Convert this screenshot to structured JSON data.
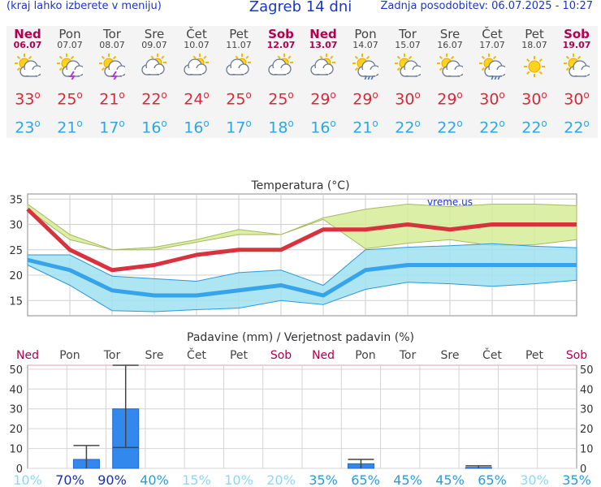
{
  "header": {
    "note": "(kraj lahko izberete v meniju)",
    "title": "Zagreb 14 dni",
    "updated": "Zadnja posodobitev: 06.07.2025 - 10:27"
  },
  "days": [
    {
      "name": "Ned",
      "date": "06.07",
      "icon": "sun-cloud-icon",
      "tmax": "33",
      "tmin": "23",
      "weekend": true
    },
    {
      "name": "Pon",
      "date": "07.07",
      "icon": "thunderstorm-icon",
      "tmax": "25",
      "tmin": "21",
      "weekend": false
    },
    {
      "name": "Tor",
      "date": "08.07",
      "icon": "sun-thunderstorm-icon",
      "tmax": "21",
      "tmin": "17",
      "weekend": false
    },
    {
      "name": "Sre",
      "date": "09.07",
      "icon": "cloudy-sun-icon",
      "tmax": "22",
      "tmin": "16",
      "weekend": false
    },
    {
      "name": "Čet",
      "date": "10.07",
      "icon": "cloudy-sun-icon",
      "tmax": "24",
      "tmin": "16",
      "weekend": false
    },
    {
      "name": "Pet",
      "date": "11.07",
      "icon": "cloudy-sun-icon",
      "tmax": "25",
      "tmin": "17",
      "weekend": false
    },
    {
      "name": "Sob",
      "date": "12.07",
      "icon": "cloudy-sun-icon",
      "tmax": "25",
      "tmin": "18",
      "weekend": true
    },
    {
      "name": "Ned",
      "date": "13.07",
      "icon": "cloudy-sun-icon",
      "tmax": "29",
      "tmin": "16",
      "weekend": true
    },
    {
      "name": "Pon",
      "date": "14.07",
      "icon": "sun-rain-icon",
      "tmax": "29",
      "tmin": "21",
      "weekend": false
    },
    {
      "name": "Tor",
      "date": "15.07",
      "icon": "sun-cloud-icon",
      "tmax": "30",
      "tmin": "22",
      "weekend": false
    },
    {
      "name": "Sre",
      "date": "16.07",
      "icon": "sun-cloud-icon",
      "tmax": "29",
      "tmin": "22",
      "weekend": false
    },
    {
      "name": "Čet",
      "date": "17.07",
      "icon": "sun-rain-icon",
      "tmax": "30",
      "tmin": "22",
      "weekend": false
    },
    {
      "name": "Pet",
      "date": "18.07",
      "icon": "sun-icon",
      "tmax": "30",
      "tmin": "22",
      "weekend": false
    },
    {
      "name": "Sob",
      "date": "19.07",
      "icon": "sun-cloud-icon",
      "tmax": "30",
      "tmin": "22",
      "weekend": true
    }
  ],
  "colors": {
    "max_line": "#d8323e",
    "max_band": "#d6ec96",
    "min_line": "#36a4ea",
    "min_band": "#9fe0f0",
    "precip_bar": "#3388ee",
    "weekend": "#b00050"
  },
  "chart_data": [
    {
      "type": "line",
      "title": "Temperatura (°C)",
      "watermark": "vreme.us",
      "x": [
        1,
        2,
        3,
        4,
        5,
        6,
        7,
        8,
        9,
        10,
        11,
        12,
        13,
        14
      ],
      "ylim": [
        12,
        36
      ],
      "yticks": [
        15,
        20,
        25,
        30,
        35
      ],
      "series": [
        {
          "values": [
            33,
            25,
            21,
            22,
            24,
            25,
            25,
            29,
            29,
            30,
            29,
            30,
            30,
            30
          ],
          "band_low": [
            33,
            27,
            25,
            25,
            26.5,
            28,
            28,
            31,
            25.2,
            26.3,
            27,
            25.8,
            26,
            27
          ],
          "band_high": [
            34,
            28,
            25,
            25.5,
            27,
            29,
            28,
            31.3,
            33,
            34,
            33.5,
            34,
            34,
            33.7
          ]
        },
        {
          "values": [
            23,
            21,
            17,
            16,
            16,
            17,
            18,
            16,
            21,
            22,
            22,
            22,
            22,
            22
          ],
          "band_low": [
            22,
            18,
            13,
            12.8,
            13.2,
            13.5,
            15,
            14.2,
            17.2,
            18.6,
            18.3,
            17.8,
            18.3,
            19
          ],
          "band_high": [
            24,
            24,
            19.8,
            19.3,
            18.8,
            20.5,
            21,
            18,
            25,
            25.5,
            25.8,
            26.2,
            25.7,
            25.4
          ]
        }
      ]
    },
    {
      "type": "bar",
      "title": "Padavine (mm) / Verjetnost padavin (%)",
      "categories": [
        "Ned",
        "Pon",
        "Tor",
        "Sre",
        "Čet",
        "Pet",
        "Sob",
        "Ned",
        "Pon",
        "Tor",
        "Sre",
        "Čet",
        "Pet",
        "Sob"
      ],
      "values": [
        0,
        4.5,
        30,
        0,
        0,
        0,
        0,
        0,
        2.3,
        0,
        0,
        0.5,
        0,
        0
      ],
      "error_low": [
        0,
        0,
        10.5,
        0,
        0,
        0,
        0,
        0,
        0,
        0,
        0,
        0,
        0,
        0
      ],
      "error_high": [
        0,
        11.5,
        52,
        0,
        0,
        0,
        0,
        0,
        4.5,
        0,
        0,
        1.3,
        0,
        0
      ],
      "probability": [
        "10%",
        "70%",
        "90%",
        "40%",
        "15%",
        "10%",
        "20%",
        "35%",
        "65%",
        "45%",
        "45%",
        "65%",
        "30%",
        "35%"
      ],
      "ylim": [
        0,
        52
      ],
      "yticks": [
        0,
        10,
        20,
        30,
        40,
        50
      ]
    }
  ]
}
